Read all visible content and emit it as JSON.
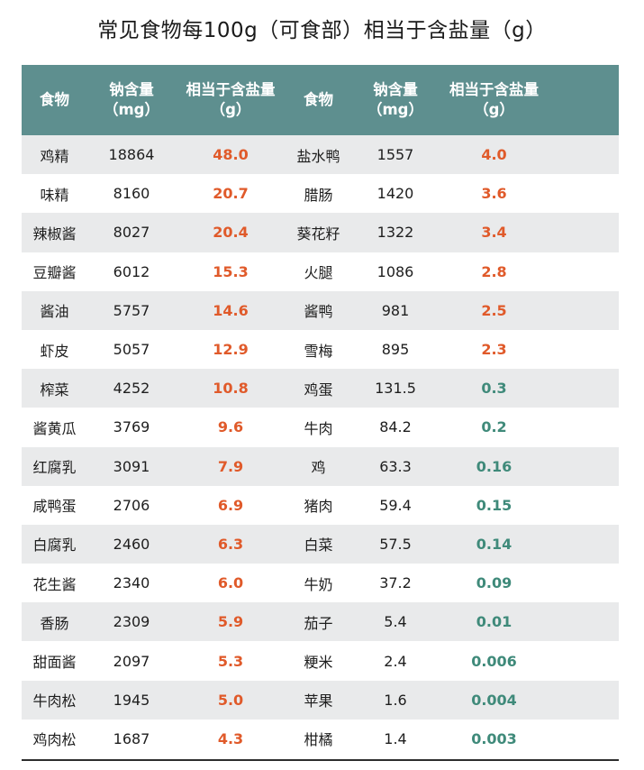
{
  "title": "常见食物每100g（可食部）相当于含盐量（g）",
  "colors": {
    "header_bg": "#5e8f8f",
    "salt_high": "#e05a2a",
    "salt_low": "#3f8a7a",
    "row_alt": "#e9eaeb"
  },
  "headers": {
    "food": "食物",
    "sodium": "钠含量\n（mg）",
    "salt": "相当于含盐量\n（g）"
  },
  "rows": [
    {
      "left": {
        "food": "鸡精",
        "sodium": "18864",
        "salt": "48.0"
      },
      "right": {
        "food": "盐水鸭",
        "sodium": "1557",
        "salt": "4.0"
      }
    },
    {
      "left": {
        "food": "味精",
        "sodium": "8160",
        "salt": "20.7"
      },
      "right": {
        "food": "腊肠",
        "sodium": "1420",
        "salt": "3.6"
      }
    },
    {
      "left": {
        "food": "辣椒酱",
        "sodium": "8027",
        "salt": "20.4"
      },
      "right": {
        "food": "葵花籽",
        "sodium": "1322",
        "salt": "3.4"
      }
    },
    {
      "left": {
        "food": "豆瓣酱",
        "sodium": "6012",
        "salt": "15.3"
      },
      "right": {
        "food": "火腿",
        "sodium": "1086",
        "salt": "2.8"
      }
    },
    {
      "left": {
        "food": "酱油",
        "sodium": "5757",
        "salt": "14.6"
      },
      "right": {
        "food": "酱鸭",
        "sodium": "981",
        "salt": "2.5"
      }
    },
    {
      "left": {
        "food": "虾皮",
        "sodium": "5057",
        "salt": "12.9"
      },
      "right": {
        "food": "雪梅",
        "sodium": "895",
        "salt": "2.3"
      }
    },
    {
      "left": {
        "food": "榨菜",
        "sodium": "4252",
        "salt": "10.8"
      },
      "right": {
        "food": "鸡蛋",
        "sodium": "131.5",
        "salt": "0.3"
      }
    },
    {
      "left": {
        "food": "酱黄瓜",
        "sodium": "3769",
        "salt": "9.6"
      },
      "right": {
        "food": "牛肉",
        "sodium": "84.2",
        "salt": "0.2"
      }
    },
    {
      "left": {
        "food": "红腐乳",
        "sodium": "3091",
        "salt": "7.9"
      },
      "right": {
        "food": "鸡",
        "sodium": "63.3",
        "salt": "0.16"
      }
    },
    {
      "left": {
        "food": "咸鸭蛋",
        "sodium": "2706",
        "salt": "6.9"
      },
      "right": {
        "food": "猪肉",
        "sodium": "59.4",
        "salt": "0.15"
      }
    },
    {
      "left": {
        "food": "白腐乳",
        "sodium": "2460",
        "salt": "6.3"
      },
      "right": {
        "food": "白菜",
        "sodium": "57.5",
        "salt": "0.14"
      }
    },
    {
      "left": {
        "food": "花生酱",
        "sodium": "2340",
        "salt": "6.0"
      },
      "right": {
        "food": "牛奶",
        "sodium": "37.2",
        "salt": "0.09"
      }
    },
    {
      "left": {
        "food": "香肠",
        "sodium": "2309",
        "salt": "5.9"
      },
      "right": {
        "food": "茄子",
        "sodium": "5.4",
        "salt": "0.01"
      }
    },
    {
      "left": {
        "food": "甜面酱",
        "sodium": "2097",
        "salt": "5.3"
      },
      "right": {
        "food": "粳米",
        "sodium": "2.4",
        "salt": "0.006"
      }
    },
    {
      "left": {
        "food": "牛肉松",
        "sodium": "1945",
        "salt": "5.0"
      },
      "right": {
        "food": "苹果",
        "sodium": "1.6",
        "salt": "0.004"
      }
    },
    {
      "left": {
        "food": "鸡肉松",
        "sodium": "1687",
        "salt": "4.3"
      },
      "right": {
        "food": "柑橘",
        "sodium": "1.4",
        "salt": "0.003"
      }
    }
  ]
}
